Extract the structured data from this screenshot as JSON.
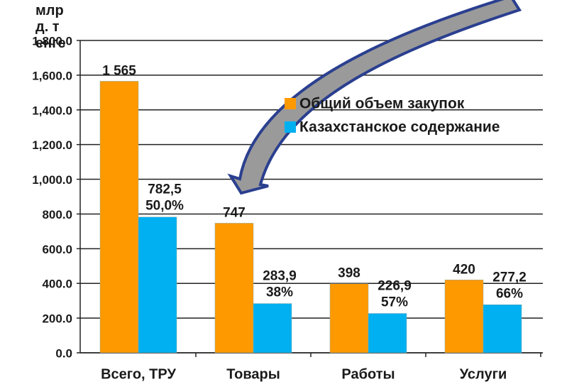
{
  "chart_data": {
    "type": "bar",
    "ylabel": "млрд. тенге",
    "categories": [
      "Всего, ТРУ",
      "Товары",
      "Работы",
      "Услуги"
    ],
    "series": [
      {
        "name": "Общий объем закупок",
        "color": "#FF9900",
        "values": [
          1565,
          747,
          398,
          420
        ],
        "value_labels": [
          "1 565",
          "747",
          "398",
          "420"
        ]
      },
      {
        "name": "Казахстанское содержание",
        "color": "#00B0F0",
        "values": [
          782.5,
          283.9,
          226.9,
          277.2
        ],
        "value_labels": [
          "782,5",
          "283,9",
          "226,9",
          "277,2"
        ],
        "share_labels": [
          "50,0%",
          "38%",
          "57%",
          "66%"
        ]
      }
    ],
    "ylim": [
      0,
      1800
    ],
    "yticks": [
      {
        "value": 0,
        "label": "0.0"
      },
      {
        "value": 200,
        "label": "200.0"
      },
      {
        "value": 400,
        "label": "400.0"
      },
      {
        "value": 600,
        "label": "600.0"
      },
      {
        "value": 800,
        "label": "800.0"
      },
      {
        "value": 1000,
        "label": "1,000.0"
      },
      {
        "value": 1200,
        "label": "1,200.0"
      },
      {
        "value": 1400,
        "label": "1,400.0"
      },
      {
        "value": 1600,
        "label": "1,600.0"
      },
      {
        "value": 1800,
        "label": "1,800.0"
      }
    ],
    "grid": true
  }
}
